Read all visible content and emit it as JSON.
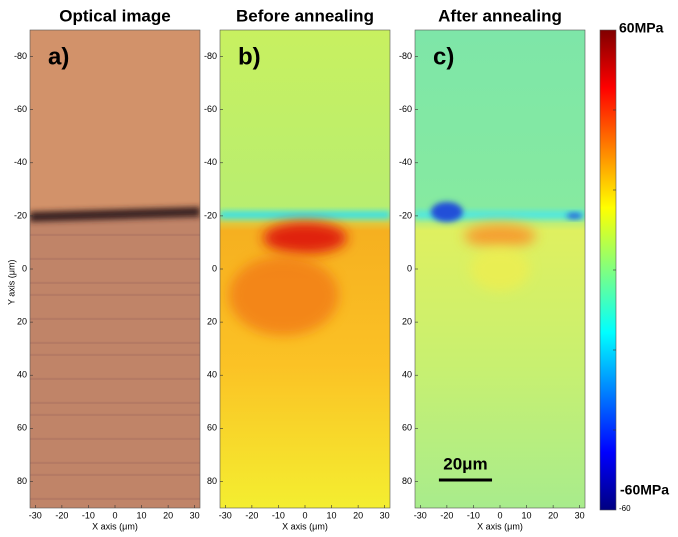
{
  "panels": [
    {
      "title": "Optical image",
      "letter": "a)",
      "x_label": "X axis (μm)",
      "y_label": "Y axis (μm)"
    },
    {
      "title": "Before annealing",
      "letter": "b)",
      "x_label": "X axis (μm)"
    },
    {
      "title": "After annealing",
      "letter": "c)",
      "x_label": "X axis (μm)"
    }
  ],
  "xlim": [
    -32,
    32
  ],
  "ylim": [
    -90,
    90
  ],
  "xticks": [
    -30,
    -20,
    -10,
    0,
    10,
    20,
    30
  ],
  "yticks": [
    -80,
    -60,
    -40,
    -20,
    0,
    20,
    40,
    60,
    80
  ],
  "scale_bar": "20μm",
  "colorbar": {
    "max_label": "60MPa",
    "min_label": "-60MPa",
    "min_tick": -60
  }
}
